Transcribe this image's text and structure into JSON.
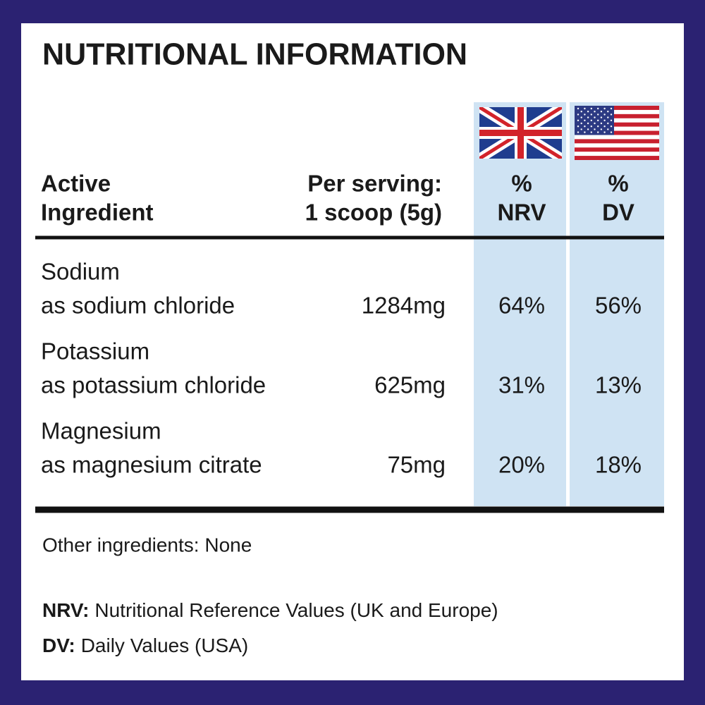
{
  "title": "NUTRITIONAL INFORMATION",
  "table": {
    "header": [
      [
        "Active",
        "Ingredient"
      ],
      [
        "Per serving:",
        "1 scoop (5g)"
      ],
      [
        "%",
        "NRV"
      ],
      [
        "%",
        "DV"
      ]
    ],
    "rows": [
      [
        [
          "Sodium",
          "as sodium chloride"
        ],
        "1284mg",
        "64%",
        "56%"
      ],
      [
        [
          "Potassium",
          "as potassium chloride"
        ],
        "625mg",
        "31%",
        "13%"
      ],
      [
        [
          "Magnesium",
          "as magnesium citrate"
        ],
        "75mg",
        "20%",
        "18%"
      ]
    ]
  },
  "other_ingredients": "Other ingredients: None",
  "notes": [
    {
      "term": "NRV:",
      "definition": "Nutritional Reference Values (UK and Europe)"
    },
    {
      "term": "DV:",
      "definition": "Daily Values (USA)"
    }
  ]
}
